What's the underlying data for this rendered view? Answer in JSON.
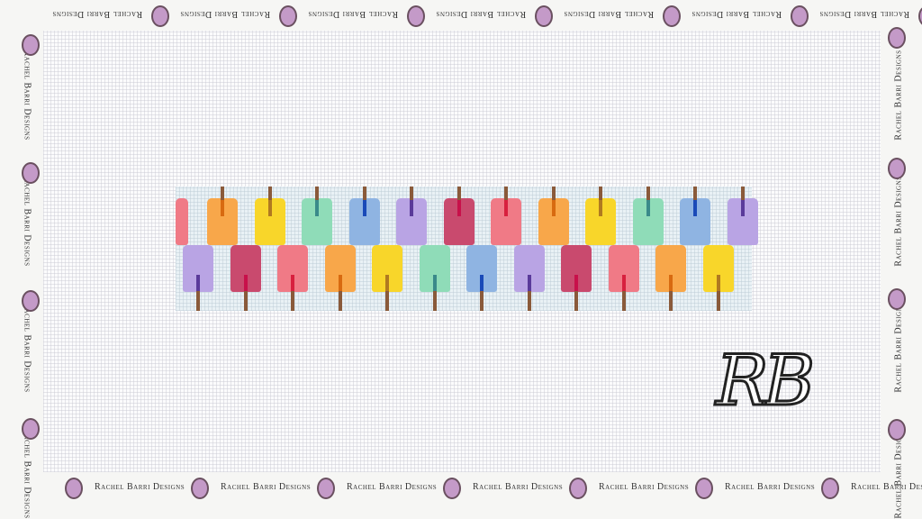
{
  "brand": {
    "label": "Rachel Barri Designs",
    "border_color": "#6a5060",
    "logo_color": "#c49ac8"
  },
  "design": {
    "monogram": "RB",
    "band_color": "#e9f1f5",
    "stick_color": "#8a5a3a",
    "top_row": [
      "#f07a86",
      "#f8a74a",
      "#f8d62a",
      "#8fdcb8",
      "#8fb4e2",
      "#b9a4e4",
      "#c94a6e",
      "#f07a86",
      "#f8a74a",
      "#f8d62a",
      "#8fdcb8",
      "#8fb4e2",
      "#b9a4e4"
    ],
    "bottom_row": [
      "#b9a4e4",
      "#c94a6e",
      "#f07a86",
      "#f8a74a",
      "#f8d62a",
      "#8fdcb8",
      "#8fb4e2",
      "#b9a4e4",
      "#c94a6e",
      "#f07a86",
      "#f8a74a",
      "#f8d62a"
    ],
    "drip_colors": {
      "#f07a86": "#d8203e",
      "#f8a74a": "#d86a10",
      "#f8d62a": "#b07a20",
      "#8fdcb8": "#3a8a8a",
      "#8fb4e2": "#1a4ab8",
      "#b9a4e4": "#5a3a9a",
      "#c94a6e": "#c8104a"
    }
  }
}
